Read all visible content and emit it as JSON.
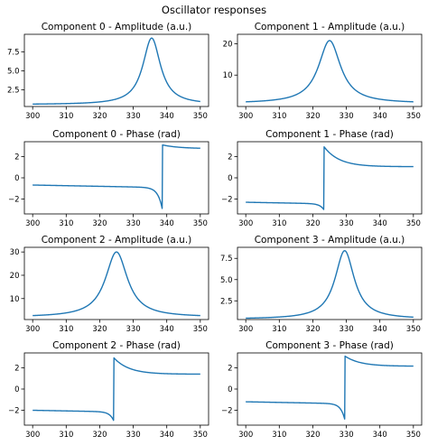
{
  "figure": {
    "title": "Oscillator responses",
    "line_color": "#1f77b4"
  },
  "chart_data": [
    {
      "type": "line",
      "title": "Component 0 - Amplitude (a.u.)",
      "kind": "amplitude",
      "center": 335.5,
      "width": 3.2,
      "peak": 9.3,
      "floor": 0.55,
      "xlim": [
        300,
        350
      ],
      "ylim": [
        0.3,
        9.8
      ],
      "xticks": [
        300,
        310,
        320,
        330,
        340,
        350
      ],
      "yticks": [
        2.5,
        5.0,
        7.5
      ],
      "ytick_labels": [
        "2.5",
        "5.0",
        "7.5"
      ]
    },
    {
      "type": "line",
      "title": "Component 1 - Amplitude (a.u.)",
      "kind": "amplitude",
      "center": 325.0,
      "width": 4.0,
      "peak": 21.0,
      "floor": 1.0,
      "xlim": [
        300,
        350
      ],
      "ylim": [
        0,
        23
      ],
      "xticks": [
        300,
        310,
        320,
        330,
        340,
        350
      ],
      "yticks": [
        10,
        20
      ],
      "ytick_labels": [
        "10",
        "20"
      ]
    },
    {
      "type": "line",
      "title": "Component 0 - Phase (rad)",
      "kind": "phase",
      "center": 338.7,
      "width": 1.3,
      "pre": -0.68,
      "preslope": -0.006,
      "min": -3.0,
      "max": 3.1,
      "post": 2.75,
      "postdecay": 5.0,
      "xlim": [
        300,
        350
      ],
      "ylim": [
        -3.4,
        3.4
      ],
      "xticks": [
        300,
        310,
        320,
        330,
        340,
        350
      ],
      "yticks": [
        -2,
        0,
        2
      ],
      "ytick_labels": [
        "−2",
        "0",
        "2"
      ]
    },
    {
      "type": "line",
      "title": "Component 1 - Phase (rad)",
      "kind": "phase",
      "center": 323.3,
      "width": 1.2,
      "pre": -2.3,
      "preslope": -0.006,
      "min": -3.0,
      "max": 2.95,
      "post": 1.05,
      "postdecay": 4.5,
      "xlim": [
        300,
        350
      ],
      "ylim": [
        -3.4,
        3.4
      ],
      "xticks": [
        300,
        310,
        320,
        330,
        340,
        350
      ],
      "yticks": [
        -2,
        0,
        2
      ],
      "ytick_labels": [
        "−2",
        "0",
        "2"
      ]
    },
    {
      "type": "line",
      "title": "Component 2 - Amplitude (a.u.)",
      "kind": "amplitude",
      "center": 325.0,
      "width": 4.0,
      "peak": 30.0,
      "floor": 2.0,
      "xlim": [
        300,
        350
      ],
      "ylim": [
        1.0,
        32.0
      ],
      "xticks": [
        300,
        310,
        320,
        330,
        340,
        350
      ],
      "yticks": [
        10,
        20,
        30
      ],
      "ytick_labels": [
        "10",
        "20",
        "30"
      ]
    },
    {
      "type": "line",
      "title": "Component 3 - Amplitude (a.u.)",
      "kind": "amplitude",
      "center": 329.5,
      "width": 3.5,
      "peak": 8.4,
      "floor": 0.35,
      "xlim": [
        300,
        350
      ],
      "ylim": [
        0.3,
        8.8
      ],
      "xticks": [
        300,
        310,
        320,
        330,
        340,
        350
      ],
      "yticks": [
        2.5,
        5.0,
        7.5
      ],
      "ytick_labels": [
        "2.5",
        "5.0",
        "7.5"
      ]
    },
    {
      "type": "line",
      "title": "Component 2 - Phase (rad)",
      "kind": "phase",
      "center": 324.2,
      "width": 1.2,
      "pre": -2.0,
      "preslope": -0.006,
      "min": -3.0,
      "max": 2.95,
      "post": 1.4,
      "postdecay": 4.5,
      "xlim": [
        300,
        350
      ],
      "ylim": [
        -3.4,
        3.4
      ],
      "xticks": [
        300,
        310,
        320,
        330,
        340,
        350
      ],
      "yticks": [
        -2,
        0,
        2
      ],
      "ytick_labels": [
        "−2",
        "0",
        "2"
      ]
    },
    {
      "type": "line",
      "title": "Component 3 - Phase (rad)",
      "kind": "phase",
      "center": 329.6,
      "width": 1.2,
      "pre": -1.2,
      "preslope": -0.006,
      "min": -2.95,
      "max": 3.1,
      "post": 2.15,
      "postdecay": 4.5,
      "xlim": [
        300,
        350
      ],
      "ylim": [
        -3.4,
        3.4
      ],
      "xticks": [
        300,
        310,
        320,
        330,
        340,
        350
      ],
      "yticks": [
        -2,
        0,
        2
      ],
      "ytick_labels": [
        "−2",
        "0",
        "2"
      ]
    }
  ]
}
